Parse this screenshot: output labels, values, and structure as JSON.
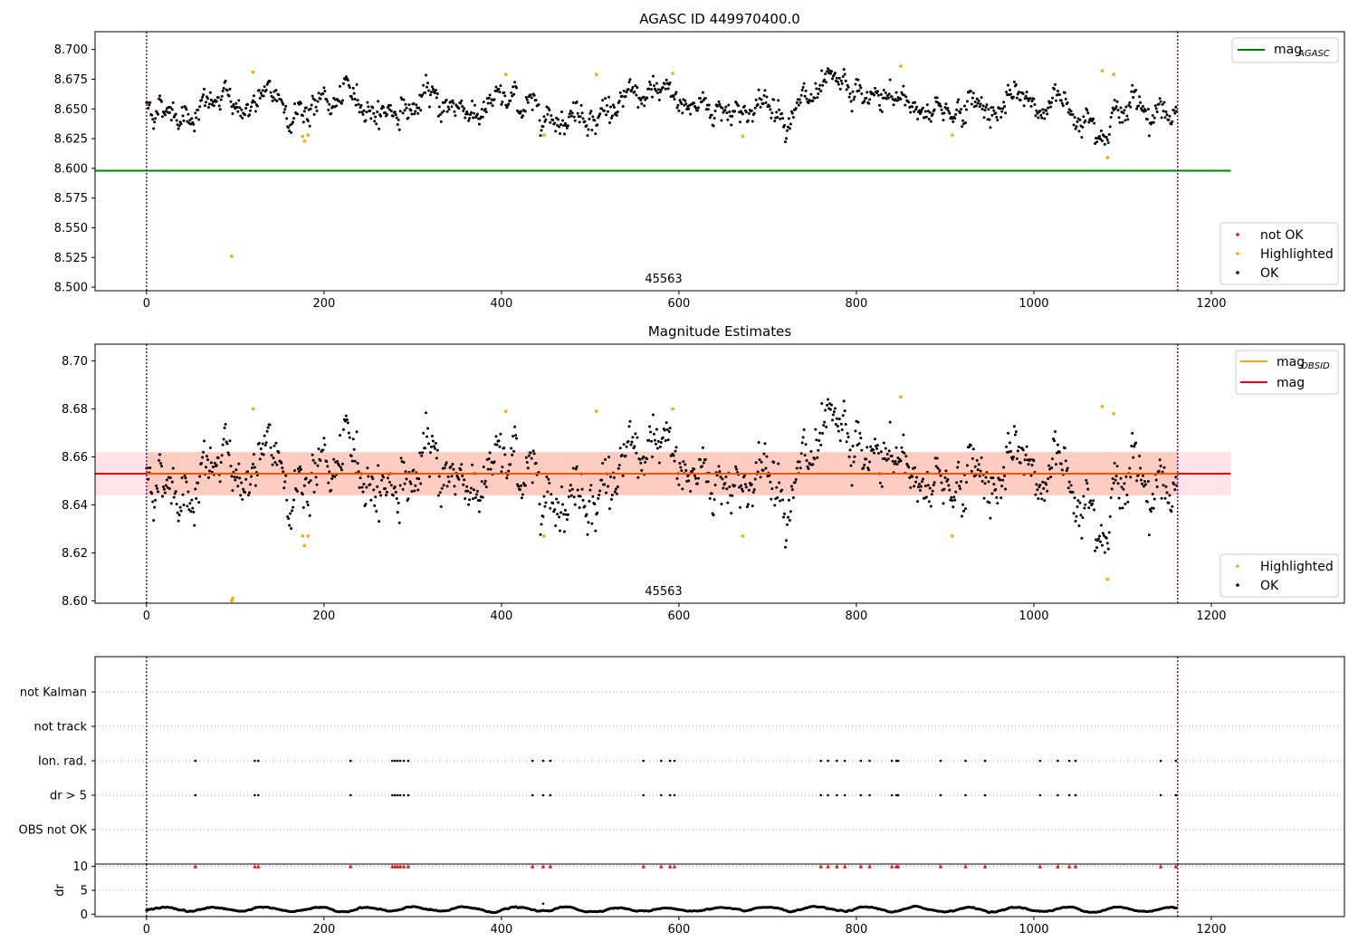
{
  "chart_data": [
    {
      "type": "scatter",
      "title": "AGASC ID 449970400.0",
      "xlim": [
        -58,
        1350
      ],
      "ylim": [
        8.497,
        8.715
      ],
      "xticks": [
        0,
        200,
        400,
        600,
        800,
        1000,
        1200
      ],
      "yticks": [
        8.5,
        8.525,
        8.55,
        8.575,
        8.6,
        8.625,
        8.65,
        8.675,
        8.7
      ],
      "ytick_labels": [
        "8.500",
        "8.525",
        "8.550",
        "8.575",
        "8.600",
        "8.625",
        "8.650",
        "8.675",
        "8.700"
      ],
      "obsid_label": "45563",
      "obsid_label_x": 582,
      "vlines": [
        0,
        1162
      ],
      "hline": {
        "y": 8.598,
        "x_range": [
          -58,
          1222
        ],
        "color": "#008000"
      },
      "n_points": 1162,
      "ok_mean": 8.653,
      "ok_spread": 0.01,
      "highlighted_points": [
        [
          96,
          8.526
        ],
        [
          120,
          8.681
        ],
        [
          176,
          8.627
        ],
        [
          178,
          8.623
        ],
        [
          182,
          8.628
        ],
        [
          405,
          8.679
        ],
        [
          448,
          8.628
        ],
        [
          507,
          8.679
        ],
        [
          593,
          8.68
        ],
        [
          672,
          8.627
        ],
        [
          850,
          8.686
        ],
        [
          908,
          8.628
        ],
        [
          1077,
          8.682
        ],
        [
          1083,
          8.609
        ],
        [
          1090,
          8.679
        ]
      ],
      "legend_top": [
        {
          "label": "mag",
          "sub": "AGASC",
          "color": "#008000",
          "kind": "line"
        }
      ],
      "legend_bottom": [
        {
          "label": "not OK",
          "color": "#ff0000",
          "kind": "dot"
        },
        {
          "label": "Highlighted",
          "color": "#ffa500",
          "kind": "dot"
        },
        {
          "label": "OK",
          "color": "#000000",
          "kind": "dot"
        }
      ]
    },
    {
      "type": "scatter",
      "title": "Magnitude Estimates",
      "xlim": [
        -58,
        1350
      ],
      "ylim": [
        8.599,
        8.707
      ],
      "xticks": [
        0,
        200,
        400,
        600,
        800,
        1000,
        1200
      ],
      "yticks": [
        8.6,
        8.62,
        8.64,
        8.66,
        8.68,
        8.7
      ],
      "ytick_labels": [
        "8.60",
        "8.62",
        "8.64",
        "8.66",
        "8.68",
        "8.70"
      ],
      "obsid_label": "45563",
      "obsid_label_x": 582,
      "vlines": [
        0,
        1162
      ],
      "mean_line": {
        "y": 8.653,
        "x_range": [
          -58,
          1222
        ],
        "color": "#ff0000"
      },
      "band_outer": {
        "y_range": [
          8.644,
          8.662
        ],
        "x_range": [
          -58,
          1222
        ],
        "color": "#ffc0cb"
      },
      "band_inner": {
        "y_range": [
          8.644,
          8.662
        ],
        "x_range": [
          0,
          1162
        ],
        "color": "#ffa07a"
      },
      "n_points": 1162,
      "ok_mean": 8.653,
      "ok_spread": 0.01,
      "highlighted_points": [
        [
          96,
          8.6
        ],
        [
          97,
          8.601
        ],
        [
          120,
          8.68
        ],
        [
          176,
          8.627
        ],
        [
          178,
          8.623
        ],
        [
          182,
          8.627
        ],
        [
          405,
          8.679
        ],
        [
          448,
          8.627
        ],
        [
          507,
          8.679
        ],
        [
          593,
          8.68
        ],
        [
          672,
          8.627
        ],
        [
          850,
          8.685
        ],
        [
          908,
          8.627
        ],
        [
          1077,
          8.681
        ],
        [
          1083,
          8.609
        ],
        [
          1090,
          8.678
        ]
      ],
      "legend_top": [
        {
          "label": "mag",
          "sub": "OBSID",
          "color": "#ffa500",
          "kind": "line"
        },
        {
          "label": "mag",
          "sub": "",
          "color": "#ff0000",
          "kind": "line"
        }
      ],
      "legend_bottom": [
        {
          "label": "Highlighted",
          "color": "#ffa500",
          "kind": "dot"
        },
        {
          "label": "OK",
          "color": "#000000",
          "kind": "dot"
        }
      ]
    },
    {
      "type": "scatter",
      "title": "",
      "xlim": [
        -58,
        1350
      ],
      "categories": [
        "not Kalman",
        "not track",
        "Ion. rad.",
        "dr > 5",
        "OBS not OK"
      ],
      "flag_x": [
        55,
        122,
        126,
        230,
        277,
        280,
        283,
        286,
        290,
        295,
        435,
        447,
        455,
        560,
        580,
        590,
        595,
        760,
        768,
        778,
        787,
        805,
        815,
        840,
        845,
        847,
        895,
        923,
        945,
        1007,
        1027,
        1040,
        1047,
        1143,
        1160
      ],
      "flagged_rows": [
        "Ion. rad.",
        "dr > 5"
      ],
      "vlines": [
        0,
        1162
      ]
    },
    {
      "type": "scatter",
      "title": "",
      "xlim": [
        -58,
        1350
      ],
      "ylim": [
        -0.5,
        10.5
      ],
      "xticks": [
        0,
        200,
        400,
        600,
        800,
        1000,
        1200
      ],
      "yticks": [
        0,
        5,
        10
      ],
      "ylabel": "dr",
      "clipped_value": 10,
      "clipped_x": [
        55,
        122,
        126,
        230,
        277,
        280,
        283,
        286,
        290,
        295,
        435,
        447,
        455,
        560,
        580,
        590,
        595,
        760,
        768,
        778,
        787,
        805,
        815,
        840,
        845,
        847,
        895,
        923,
        945,
        1007,
        1027,
        1040,
        1047,
        1143,
        1160
      ],
      "outlier_points": [
        [
          447,
          2.2
        ]
      ],
      "dr_typical_range": [
        0.1,
        1.9
      ],
      "vlines": [
        0,
        1162
      ]
    }
  ]
}
